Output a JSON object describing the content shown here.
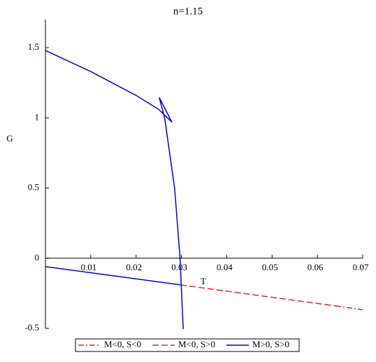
{
  "chart_data": {
    "type": "line",
    "title": "n=1.15",
    "x_label": "T",
    "y_label": "G",
    "xlim": [
      0,
      0.07
    ],
    "ylim": [
      -0.5,
      1.7
    ],
    "xticks": [
      0.01,
      0.02,
      0.03,
      0.04,
      0.05,
      0.06,
      0.07
    ],
    "yticks": [
      -0.5,
      0,
      0.5,
      1,
      1.5
    ],
    "legend": "bottom",
    "series": [
      {
        "name": "M<0, S<0",
        "color": "#d62728",
        "dash": "dash-dot",
        "x": [
          0.064,
          0.07
        ],
        "values": [
          -0.34,
          -0.367
        ]
      },
      {
        "name": "M<0, S>0",
        "color": "#d62728",
        "dash": "dash",
        "x": [
          0.0298,
          0.064
        ],
        "values": [
          -0.19,
          -0.34
        ]
      },
      {
        "name": "M>0, S>0",
        "color": "#0000cc",
        "dash": "solid",
        "x": [
          0,
          0.01,
          0.02,
          0.025,
          0.0279,
          0.0251,
          0.0263,
          0.0285,
          0.0297,
          0.0304,
          null,
          0,
          0.0298
        ],
        "values": [
          1.48,
          1.33,
          1.16,
          1.06,
          0.97,
          1.145,
          1.0,
          0.5,
          0,
          -0.505,
          null,
          -0.06,
          -0.19
        ]
      }
    ]
  }
}
